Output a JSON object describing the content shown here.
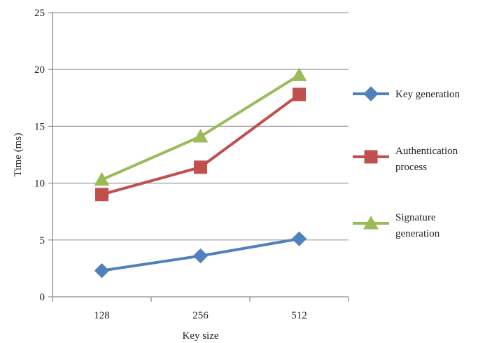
{
  "chart_data": {
    "type": "line",
    "categories": [
      "128",
      "256",
      "512"
    ],
    "series": [
      {
        "name": "Key generation",
        "name_lines": [
          "Key generation"
        ],
        "values": [
          2.3,
          3.6,
          5.1
        ],
        "color": "#4F81BD",
        "marker": "diamond"
      },
      {
        "name": "Authentication process",
        "name_lines": [
          "Authentication",
          "process"
        ],
        "values": [
          9.0,
          11.4,
          17.8
        ],
        "color": "#C0504D",
        "marker": "square"
      },
      {
        "name": "Signature generation",
        "name_lines": [
          "Signature",
          "generation"
        ],
        "values": [
          10.3,
          14.1,
          19.5
        ],
        "color": "#9BBB59",
        "marker": "triangle"
      }
    ],
    "title": "",
    "xlabel": "Key size",
    "ylabel": "Time (ms)",
    "ylim": [
      0,
      25
    ],
    "yticks": [
      0,
      5,
      10,
      15,
      20,
      25
    ],
    "grid": true,
    "legend_position": "right"
  }
}
